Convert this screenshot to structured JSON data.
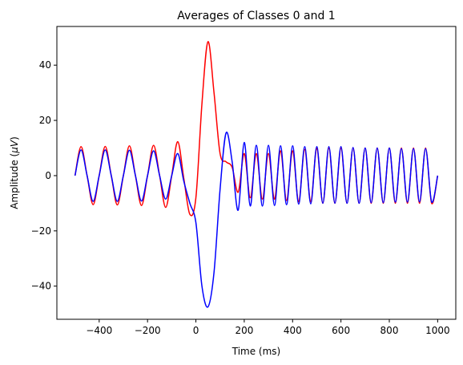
{
  "chart_data": {
    "type": "line",
    "title": "Averages of Classes 0 and 1",
    "xlabel": "Time (ms)",
    "ylabel_prefix": "Amplitude (",
    "ylabel_unit": "μV",
    "ylabel_suffix": ")",
    "xlim": [
      -575,
      1075
    ],
    "ylim": [
      -52,
      54
    ],
    "xticks": [
      -400,
      -200,
      0,
      200,
      400,
      600,
      800,
      1000
    ],
    "yticks": [
      -40,
      -20,
      0,
      20,
      40
    ],
    "grid": false,
    "legend": "none",
    "x": [
      -500,
      -475,
      -450,
      -425,
      -400,
      -375,
      -350,
      -325,
      -300,
      -275,
      -250,
      -225,
      -200,
      -175,
      -150,
      -125,
      -100,
      -75,
      -50,
      -25,
      0,
      25,
      50,
      75,
      100,
      125,
      150,
      175,
      200,
      225,
      250,
      275,
      300,
      325,
      350,
      375,
      400,
      425,
      450,
      475,
      500,
      525,
      550,
      575,
      600,
      625,
      650,
      675,
      700,
      725,
      750,
      775,
      800,
      825,
      850,
      875,
      900,
      925,
      950,
      975,
      1000
    ],
    "series": [
      {
        "color": "#ff0000",
        "values": [
          0,
          10.5,
          0,
          -10.5,
          0,
          10.6,
          0,
          -10.6,
          0,
          10.8,
          0,
          -10.8,
          0,
          11,
          0,
          -11.5,
          0,
          12.3,
          -1,
          -14,
          -8,
          26,
          48.5,
          30,
          8,
          5,
          3,
          -6,
          8,
          -8,
          8,
          -8.5,
          8,
          -8.5,
          9,
          -9,
          9,
          -9.5,
          9.5,
          -9.5,
          10,
          -10,
          10,
          -10,
          10,
          -10,
          10,
          -10,
          10,
          -10,
          10,
          -10,
          10,
          -10,
          10,
          -10,
          10,
          -10,
          10,
          -10,
          0
        ]
      },
      {
        "color": "#0000ff",
        "values": [
          0,
          9.3,
          0,
          -9.3,
          0,
          9.3,
          0,
          -9.3,
          0,
          9.2,
          0,
          -9.2,
          0,
          9,
          0,
          -8.5,
          0,
          8,
          -2,
          -10,
          -17,
          -40,
          -47.5,
          -35,
          -5,
          15.5,
          5,
          -12.5,
          12,
          -11,
          11,
          -11,
          11,
          -10.8,
          10.8,
          -10.5,
          10.8,
          -10.3,
          10.5,
          -10.2,
          10.5,
          -10,
          10.5,
          -10,
          10.5,
          -10,
          10.2,
          -10,
          10,
          -9.8,
          10,
          -9.8,
          10,
          -9.6,
          9.8,
          -9.6,
          9.8,
          -9.5,
          9.8,
          -9.5,
          0
        ]
      }
    ]
  }
}
